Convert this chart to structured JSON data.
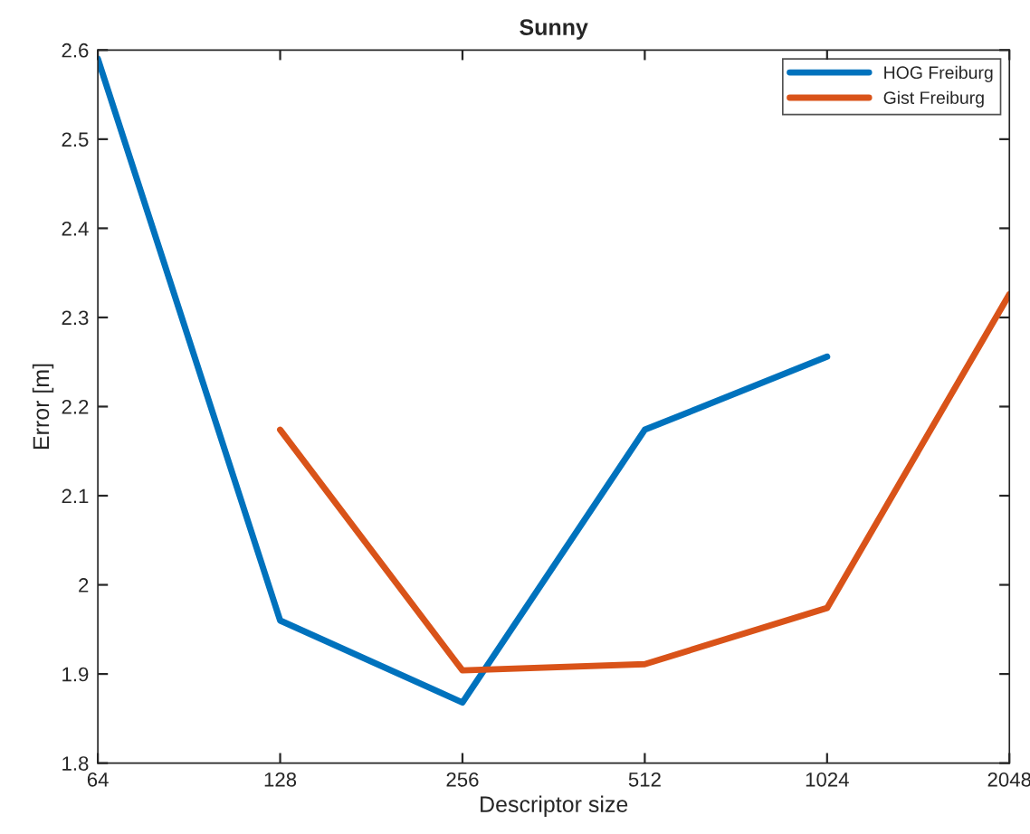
{
  "chart_data": {
    "type": "line",
    "title": "Sunny",
    "xlabel": "Descriptor size",
    "ylabel": "Error [m]",
    "x": [
      64,
      128,
      256,
      512,
      1024,
      2048
    ],
    "series": [
      {
        "name": "HOG Freiburg",
        "color": "#0072bd",
        "values": [
          2.59,
          1.96,
          1.868,
          2.174,
          2.256,
          null
        ]
      },
      {
        "name": "Gist Freiburg",
        "color": "#d95319",
        "values": [
          null,
          2.174,
          1.904,
          1.911,
          1.974,
          2.326
        ]
      }
    ],
    "log": "x",
    "xlim": [
      64,
      2048
    ],
    "xticks": [
      64,
      128,
      256,
      512,
      1024,
      2048
    ],
    "ylim": [
      1.8,
      2.6
    ],
    "yticks": [
      1.8,
      1.9,
      2,
      2.1,
      2.2,
      2.3,
      2.4,
      2.5,
      2.6
    ],
    "grid": false,
    "legend": "top right",
    "marker": "none",
    "line_style": "solid"
  }
}
